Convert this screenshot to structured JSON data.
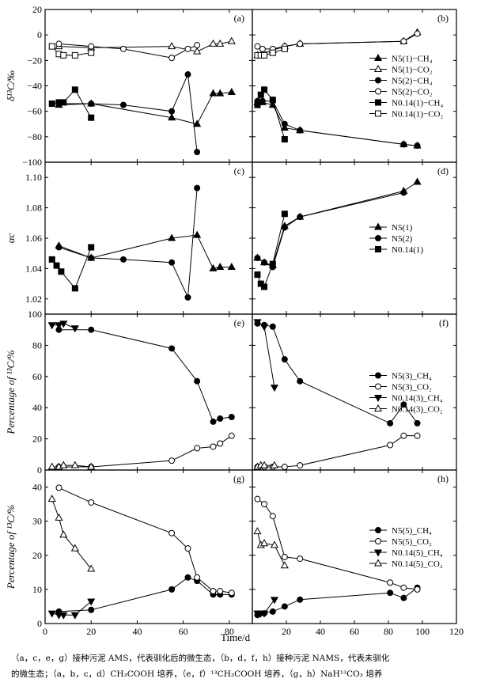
{
  "figure": {
    "x_axis": {
      "label": "Time/d",
      "ticks": [
        0,
        20,
        40,
        60,
        80,
        100,
        120
      ],
      "left_range": [
        0,
        90
      ],
      "right_range": [
        0,
        120
      ]
    },
    "caption_lines": [
      "（a，c，e，g）接种污泥 AMS，代表驯化后的微生态，（b，d，f，h）接种污泥 NAMS，代表未驯化",
      "的微生态；（a，b，c，d）CH₃COOH 培养，（e，f）¹³CH₃COOH 培养，（g，h）NaH¹³CO₃ 培养"
    ]
  },
  "chart_data": [
    {
      "id": "a",
      "type": "line",
      "label": "(a)",
      "row": 0,
      "ylabel": "δ¹³C/‰",
      "ylim": [
        -100,
        20
      ],
      "yticks": [
        -100,
        -80,
        -60,
        -40,
        -20,
        0,
        20
      ],
      "series": [
        {
          "name": "N5(1)−CH₄",
          "marker": "tri-up",
          "fill": "black",
          "x": [
            6,
            20,
            55,
            66,
            73,
            76,
            81
          ],
          "y": [
            -55,
            -54,
            -65,
            -70,
            -46,
            -46,
            -45
          ]
        },
        {
          "name": "N5(1)−CO₂",
          "marker": "tri-up",
          "fill": "white",
          "x": [
            6,
            20,
            55,
            66,
            73,
            76,
            81
          ],
          "y": [
            -9,
            -10,
            -9,
            -13,
            -7,
            -7,
            -5
          ]
        },
        {
          "name": "N5(2)−CH₄",
          "marker": "circle",
          "fill": "black",
          "x": [
            6,
            20,
            34,
            55,
            62,
            66
          ],
          "y": [
            -54,
            -54,
            -55,
            -60,
            -31,
            -92
          ]
        },
        {
          "name": "N5(2)−CO₂",
          "marker": "circle",
          "fill": "white",
          "x": [
            6,
            20,
            34,
            55,
            62,
            66
          ],
          "y": [
            -7,
            -9,
            -11,
            -18,
            -11,
            -8
          ]
        },
        {
          "name": "N0.14(1)−CH₄",
          "marker": "square",
          "fill": "black",
          "x": [
            3,
            6,
            8,
            13,
            20
          ],
          "y": [
            -54,
            -53,
            -53,
            -43,
            -65
          ]
        },
        {
          "name": "N0.14(1)−CO₂",
          "marker": "square",
          "fill": "white",
          "x": [
            3,
            6,
            8,
            13,
            20
          ],
          "y": [
            -9,
            -15,
            -16,
            -16,
            -14
          ]
        }
      ]
    },
    {
      "id": "b",
      "type": "line",
      "label": "(b)",
      "row": 0,
      "ylabel": "",
      "ylim": [
        -100,
        20
      ],
      "yticks": [
        -100,
        -80,
        -60,
        -40,
        -20,
        0,
        20
      ],
      "legend": {
        "position": "right",
        "entries": [
          {
            "name": "N5(1)−CH₄",
            "marker": "tri-up",
            "fill": "black"
          },
          {
            "name": "N5(1)−CO₂",
            "marker": "tri-up",
            "fill": "white"
          },
          {
            "name": "N5(2)−CH₄",
            "marker": "circle",
            "fill": "black"
          },
          {
            "name": "N5(2)−CO₂",
            "marker": "circle",
            "fill": "white"
          },
          {
            "name": "N0.14(1)−CH₄",
            "marker": "square",
            "fill": "black"
          },
          {
            "name": "N0.14(1)−CO₂",
            "marker": "square",
            "fill": "white"
          }
        ]
      },
      "series": [
        {
          "name": "N5(1)−CH₄",
          "marker": "tri-up",
          "fill": "black",
          "x": [
            3,
            6,
            12,
            19,
            28,
            89,
            97
          ],
          "y": [
            -53,
            -53,
            -55,
            -73,
            -75,
            -86,
            -87
          ]
        },
        {
          "name": "N5(1)−CO₂",
          "marker": "tri-up",
          "fill": "white",
          "x": [
            3,
            6,
            12,
            19,
            28,
            89,
            97
          ],
          "y": [
            -16,
            -14,
            -12,
            -9,
            -7,
            -5,
            2
          ]
        },
        {
          "name": "N5(2)−CH₄",
          "marker": "circle",
          "fill": "black",
          "x": [
            3,
            6,
            12,
            19,
            28,
            89,
            97
          ],
          "y": [
            -52,
            -52,
            -52,
            -70,
            -75,
            -86,
            -87
          ]
        },
        {
          "name": "N5(2)−CO₂",
          "marker": "circle",
          "fill": "white",
          "x": [
            3,
            6,
            12,
            19,
            28,
            89,
            97
          ],
          "y": [
            -9,
            -11,
            -11,
            -9,
            -7,
            -5,
            1
          ]
        },
        {
          "name": "N0.14(1)−CH₄",
          "marker": "square",
          "fill": "black",
          "x": [
            3,
            5,
            7,
            12,
            19
          ],
          "y": [
            -55,
            -47,
            -43,
            -51,
            -82
          ]
        },
        {
          "name": "N0.14(1)−CO₂",
          "marker": "square",
          "fill": "white",
          "x": [
            3,
            5,
            7,
            12,
            19
          ],
          "y": [
            -16,
            -16,
            -16,
            -14,
            -11
          ]
        }
      ]
    },
    {
      "id": "c",
      "type": "line",
      "label": "(c)",
      "row": 1,
      "ylabel": "αc",
      "ylim": [
        1.01,
        1.11
      ],
      "yticks": [
        1.02,
        1.04,
        1.06,
        1.08,
        1.1
      ],
      "yticklabels": [
        "1.02",
        "1.04",
        "1.06",
        "1.08",
        "1.10"
      ],
      "series": [
        {
          "name": "N5(1)",
          "marker": "tri-up",
          "fill": "black",
          "x": [
            6,
            20,
            55,
            66,
            73,
            76,
            81
          ],
          "y": [
            1.055,
            1.047,
            1.06,
            1.062,
            1.04,
            1.041,
            1.041
          ]
        },
        {
          "name": "N5(2)",
          "marker": "circle",
          "fill": "black",
          "x": [
            6,
            20,
            34,
            55,
            62,
            66
          ],
          "y": [
            1.054,
            1.047,
            1.046,
            1.044,
            1.021,
            1.093
          ]
        },
        {
          "name": "N0.14(1)",
          "marker": "square",
          "fill": "black",
          "x": [
            3,
            5,
            7,
            13,
            20
          ],
          "y": [
            1.046,
            1.042,
            1.038,
            1.027,
            1.054
          ]
        }
      ]
    },
    {
      "id": "d",
      "type": "line",
      "label": "(d)",
      "row": 1,
      "ylabel": "",
      "ylim": [
        1.01,
        1.11
      ],
      "yticks": [
        1.02,
        1.04,
        1.06,
        1.08,
        1.1
      ],
      "legend": {
        "position": "right",
        "entries": [
          {
            "name": "N5(1)",
            "marker": "tri-up",
            "fill": "black"
          },
          {
            "name": "N5(2)",
            "marker": "circle",
            "fill": "black"
          },
          {
            "name": "N0.14(1)",
            "marker": "square",
            "fill": "black"
          }
        ]
      },
      "series": [
        {
          "name": "N5(1)",
          "marker": "tri-up",
          "fill": "black",
          "x": [
            3,
            7,
            12,
            19,
            28,
            89,
            97
          ],
          "y": [
            1.047,
            1.044,
            1.042,
            1.068,
            1.074,
            1.091,
            1.097
          ]
        },
        {
          "name": "N5(2)",
          "marker": "circle",
          "fill": "black",
          "x": [
            3,
            7,
            12,
            19,
            28,
            89
          ],
          "y": [
            1.047,
            1.044,
            1.041,
            1.067,
            1.074,
            1.09
          ]
        },
        {
          "name": "N0.14(1)",
          "marker": "square",
          "fill": "black",
          "x": [
            3,
            5,
            7,
            12,
            19
          ],
          "y": [
            1.036,
            1.03,
            1.028,
            1.043,
            1.076
          ]
        }
      ]
    },
    {
      "id": "e",
      "type": "line",
      "label": "(e)",
      "row": 2,
      "ylabel": "Percentage of ¹³C/%",
      "ylim": [
        0,
        100
      ],
      "yticks": [
        0,
        20,
        40,
        60,
        80,
        100
      ],
      "series": [
        {
          "name": "N5(3)_CH₄",
          "marker": "circle",
          "fill": "black",
          "x": [
            6,
            20,
            55,
            66,
            73,
            76,
            81
          ],
          "y": [
            90,
            90,
            78,
            57,
            31,
            33,
            34
          ]
        },
        {
          "name": "N5(3)_CO₂",
          "marker": "circle",
          "fill": "white",
          "x": [
            6,
            20,
            55,
            66,
            73,
            76,
            81
          ],
          "y": [
            2,
            2,
            6,
            14,
            15,
            17,
            22
          ]
        },
        {
          "name": "N0.14(3)_CH₄",
          "marker": "tri-down",
          "fill": "black",
          "x": [
            3,
            6,
            8,
            13
          ],
          "y": [
            93,
            93,
            94,
            91
          ]
        },
        {
          "name": "N0.14(3)_CO₂",
          "marker": "tri-up",
          "fill": "white",
          "x": [
            3,
            6,
            8,
            13,
            20
          ],
          "y": [
            2,
            2,
            3,
            3,
            2
          ]
        }
      ]
    },
    {
      "id": "f",
      "type": "line",
      "label": "(f)",
      "row": 2,
      "ylabel": "",
      "ylim": [
        0,
        100
      ],
      "yticks": [
        0,
        20,
        40,
        60,
        80,
        100
      ],
      "legend": {
        "position": "right",
        "entries": [
          {
            "name": "N5(3)_CH₄",
            "marker": "circle",
            "fill": "black"
          },
          {
            "name": "N5(3)_CO₂",
            "marker": "circle",
            "fill": "white"
          },
          {
            "name": "N0.14(3)_CH₄",
            "marker": "tri-down",
            "fill": "black"
          },
          {
            "name": "N0.14(3)_CO₂",
            "marker": "tri-up",
            "fill": "white"
          }
        ]
      },
      "series": [
        {
          "name": "N5(3)_CH₄",
          "marker": "circle",
          "fill": "black",
          "x": [
            3,
            7,
            12,
            19,
            28,
            81,
            89,
            97
          ],
          "y": [
            94,
            93,
            92,
            71,
            57,
            30,
            42,
            30
          ]
        },
        {
          "name": "N5(3)_CO₂",
          "marker": "circle",
          "fill": "white",
          "x": [
            3,
            7,
            12,
            19,
            28,
            81,
            89,
            97
          ],
          "y": [
            2,
            2,
            2,
            2,
            3,
            16,
            22,
            22
          ]
        },
        {
          "name": "N0.14(3)_CH₄",
          "marker": "tri-down",
          "fill": "black",
          "x": [
            3,
            7,
            13
          ],
          "y": [
            95,
            92,
            53
          ]
        },
        {
          "name": "N0.14(3)_CO₂",
          "marker": "tri-up",
          "fill": "white",
          "x": [
            3,
            5,
            7,
            13
          ],
          "y": [
            2,
            3,
            3,
            3
          ]
        }
      ]
    },
    {
      "id": "g",
      "type": "line",
      "label": "(g)",
      "row": 3,
      "ylabel": "Percentage of ¹³C/%",
      "ylim": [
        0,
        45
      ],
      "yticks": [
        0,
        10,
        20,
        30,
        40
      ],
      "series": [
        {
          "name": "N5(5)_CH₄",
          "marker": "circle",
          "fill": "black",
          "x": [
            6,
            20,
            55,
            62,
            66,
            73,
            76,
            81
          ],
          "y": [
            3.5,
            4,
            10,
            13.5,
            12.5,
            8.5,
            8.5,
            8.5
          ]
        },
        {
          "name": "N5(5)_CO₂",
          "marker": "circle",
          "fill": "white",
          "x": [
            6,
            20,
            55,
            62,
            66,
            73,
            76,
            81
          ],
          "y": [
            39.8,
            35.5,
            26.5,
            22,
            13.5,
            9.5,
            9.5,
            9
          ]
        },
        {
          "name": "N0.14(5)_CH₄",
          "marker": "tri-down",
          "fill": "black",
          "x": [
            3,
            6,
            8,
            13,
            20
          ],
          "y": [
            3,
            2.5,
            2.5,
            2.5,
            6.5
          ]
        },
        {
          "name": "N0.14(5)_CO₂",
          "marker": "tri-up",
          "fill": "white",
          "x": [
            3,
            6,
            8,
            13,
            20
          ],
          "y": [
            36.5,
            31,
            26,
            22,
            16
          ]
        }
      ]
    },
    {
      "id": "h",
      "type": "line",
      "label": "(h)",
      "row": 3,
      "ylabel": "",
      "ylim": [
        0,
        45
      ],
      "yticks": [
        0,
        10,
        20,
        30,
        40
      ],
      "legend": {
        "position": "right",
        "entries": [
          {
            "name": "N5(5)_CH₄",
            "marker": "circle",
            "fill": "black"
          },
          {
            "name": "N5(5)_CO₂",
            "marker": "circle",
            "fill": "white"
          },
          {
            "name": "N0.14(5)_CH₄",
            "marker": "tri-down",
            "fill": "black"
          },
          {
            "name": "N0.14(5)_CO₂",
            "marker": "tri-up",
            "fill": "white"
          }
        ]
      },
      "series": [
        {
          "name": "N5(5)_CH₄",
          "marker": "circle",
          "fill": "black",
          "x": [
            3,
            7,
            12,
            19,
            28,
            81,
            89,
            97
          ],
          "y": [
            2.5,
            3,
            3.5,
            5,
            7,
            9,
            7.5,
            10.5
          ]
        },
        {
          "name": "N5(5)_CO₂",
          "marker": "circle",
          "fill": "white",
          "x": [
            3,
            7,
            12,
            19,
            28,
            81,
            89,
            97
          ],
          "y": [
            36.5,
            35,
            31.5,
            19.5,
            19,
            12,
            10.5,
            10
          ]
        },
        {
          "name": "N0.14(5)_CH₄",
          "marker": "tri-down",
          "fill": "black",
          "x": [
            3,
            5,
            7,
            13
          ],
          "y": [
            3,
            3,
            3,
            7
          ]
        },
        {
          "name": "N0.14(5)_CO₂",
          "marker": "tri-up",
          "fill": "white",
          "x": [
            3,
            5,
            7,
            13,
            19
          ],
          "y": [
            27,
            23,
            23.5,
            23,
            17
          ]
        }
      ]
    }
  ]
}
